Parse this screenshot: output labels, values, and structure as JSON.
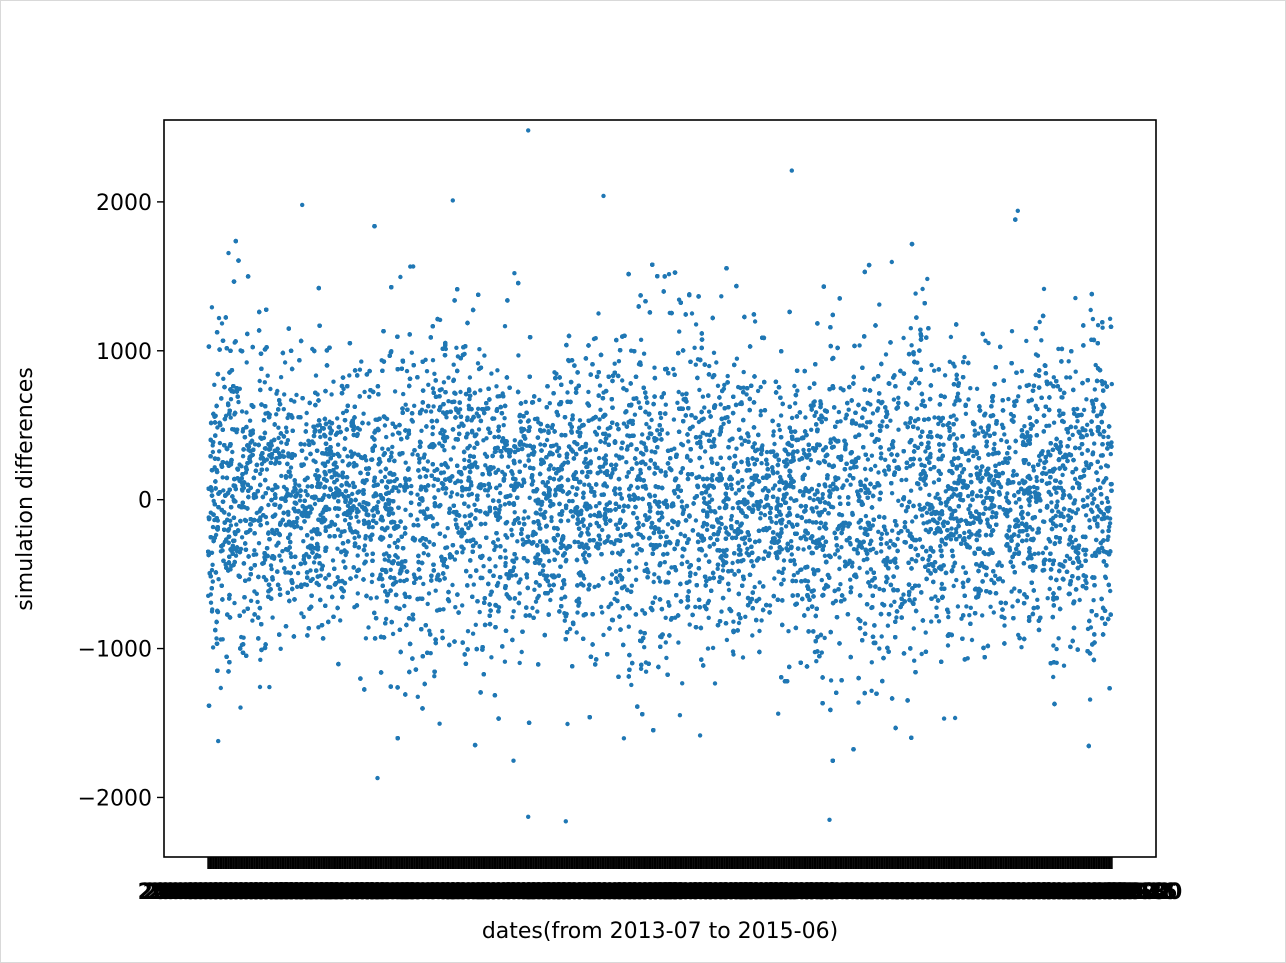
{
  "chart_data": {
    "type": "scatter",
    "title": "",
    "xlabel": "dates(from 2013-07 to 2015-06)",
    "ylabel": "simulation differences",
    "x_range": [
      "2013-07",
      "2015-06"
    ],
    "ylim": [
      -2400,
      2550
    ],
    "yticks": [
      -2000,
      -1000,
      0,
      1000,
      2000
    ],
    "ytick_labels": [
      "−2000",
      "−1000",
      "0",
      "1000",
      "2000"
    ],
    "xtick_labels_overlapping": true,
    "grid": false,
    "legend": "none",
    "marker_color": "#1f77b4",
    "series": [
      {
        "approx_point_count": 20000,
        "distribution": "dense scatter centred on 0; mostly within ±1000, sparse to about ±1900",
        "notable_points": [
          {
            "x": "2014-03",
            "y": 2480
          },
          {
            "x": "2014-10",
            "y": 2210
          },
          {
            "x": "2014-05",
            "y": 2040
          },
          {
            "x": "2014-01",
            "y": 2010
          },
          {
            "x": "2013-09",
            "y": 1980
          },
          {
            "x": "2015-04",
            "y": 1940
          },
          {
            "x": "2014-03",
            "y": -2130
          },
          {
            "x": "2014-04",
            "y": -2160
          },
          {
            "x": "2014-11",
            "y": -2150
          },
          {
            "x": "2013-11",
            "y": -1870
          }
        ]
      }
    ]
  }
}
